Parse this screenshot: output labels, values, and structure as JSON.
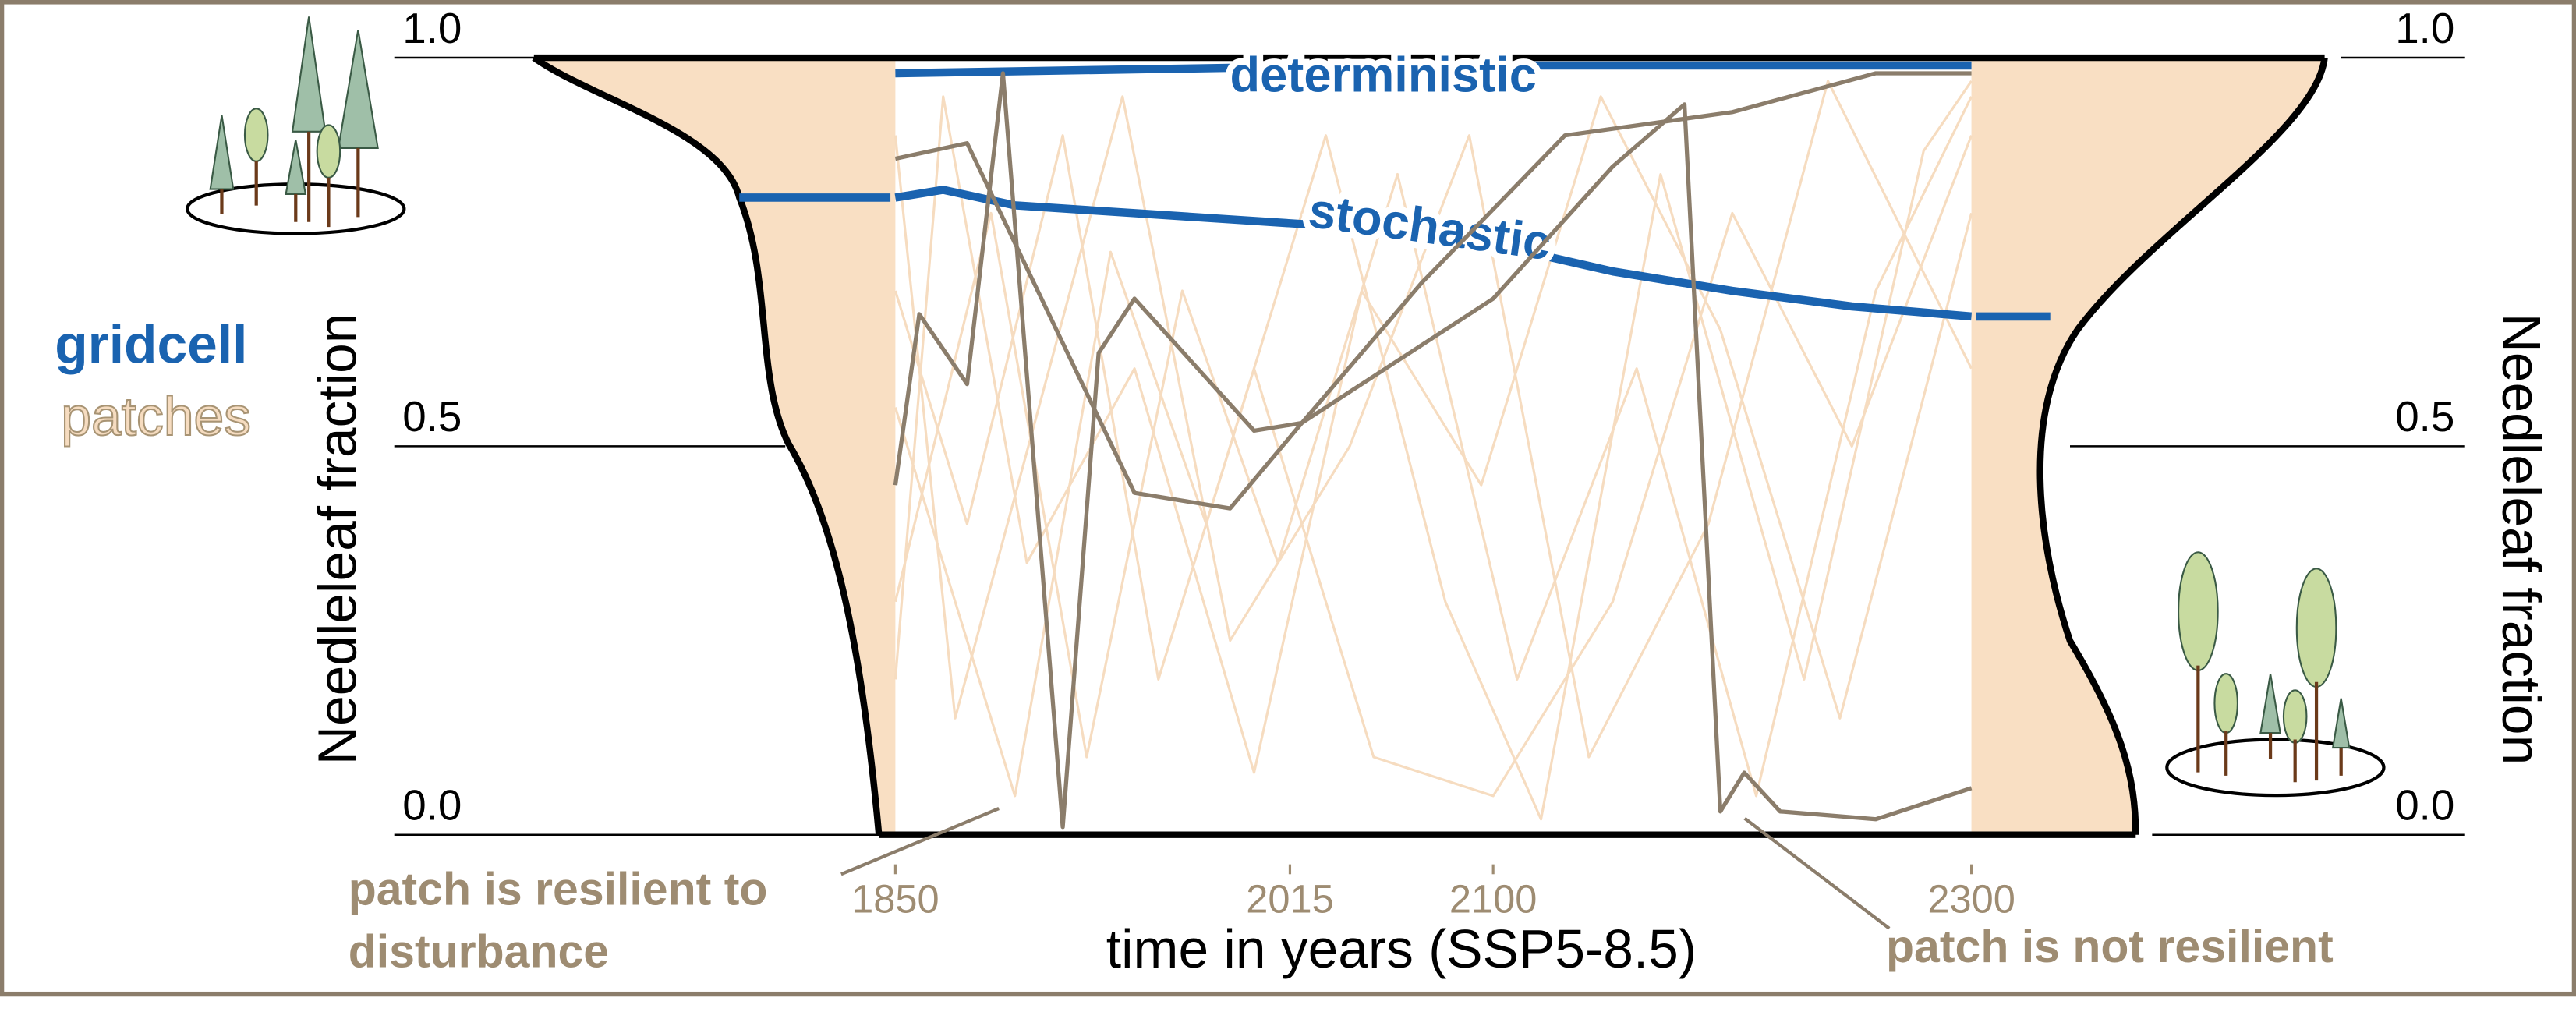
{
  "chart_data": {
    "type": "line",
    "y_label": "Needleleaf fraction",
    "x_label": "time in years (SSP5-8.5)",
    "xlim": [
      1850,
      2300
    ],
    "xticks": [
      1850,
      2015,
      2100,
      2300
    ],
    "ylim": [
      0,
      1
    ],
    "yticks": [
      {
        "value": 0,
        "label": "0.0"
      },
      {
        "value": 0.5,
        "label": "0.5"
      },
      {
        "value": 1,
        "label": "1.0"
      }
    ],
    "legend": [
      {
        "label": "gridcell",
        "color": "#1a63b0"
      },
      {
        "label": "patches",
        "color": "#f6dcc0"
      }
    ],
    "annotations": [
      "patch is resilient to disturbance",
      "patch is not resilient"
    ],
    "series": [
      {
        "color": "#f6dcc0",
        "x": [
          1850,
          1880,
          1920,
          1960,
          2000,
          2050,
          2100,
          2150,
          2200,
          2250,
          2300
        ],
        "values": [
          0.7,
          0.4,
          0.9,
          0.2,
          0.6,
          0.1,
          0.05,
          0.3,
          0.8,
          0.5,
          0.9
        ]
      },
      {
        "color": "#f6dcc0",
        "x": [
          1850,
          1890,
          1930,
          1970,
          2010,
          2060,
          2110,
          2160,
          2210,
          2260,
          2300
        ],
        "values": [
          0.3,
          0.8,
          0.1,
          0.7,
          0.35,
          0.85,
          0.2,
          0.6,
          0.05,
          0.7,
          0.95
        ]
      },
      {
        "color": "#f6dcc0",
        "x": [
          1850,
          1875,
          1910,
          1945,
          1990,
          2040,
          2090,
          2140,
          2190,
          2240,
          2300
        ],
        "values": [
          0.9,
          0.15,
          0.55,
          0.95,
          0.25,
          0.5,
          0.9,
          0.1,
          0.4,
          0.97,
          0.6
        ]
      },
      {
        "color": "#f6dcc0",
        "x": [
          1850,
          1900,
          1940,
          1980,
          2030,
          2080,
          2120,
          2170,
          2230,
          2280,
          2300
        ],
        "values": [
          0.55,
          0.05,
          0.75,
          0.4,
          0.9,
          0.3,
          0.02,
          0.85,
          0.2,
          0.88,
          0.97
        ]
      },
      {
        "color": "#f6dcc0",
        "x": [
          1850,
          1870,
          1905,
          1950,
          2000,
          2045,
          2095,
          2145,
          2195,
          2245,
          2300
        ],
        "values": [
          0.2,
          0.95,
          0.35,
          0.6,
          0.08,
          0.7,
          0.45,
          0.95,
          0.65,
          0.15,
          0.8
        ]
      },
      {
        "name": "deterministic",
        "color": "#1a63b0",
        "x": [
          1850,
          1950,
          2050,
          2150,
          2300
        ],
        "values": [
          0.98,
          0.985,
          0.99,
          0.99,
          0.99
        ]
      },
      {
        "name": "stochastic",
        "color": "#1a63b0",
        "x": [
          1850,
          1870,
          1900,
          1950,
          2000,
          2050,
          2100,
          2150,
          2200,
          2250,
          2300
        ],
        "values": [
          0.82,
          0.83,
          0.81,
          0.8,
          0.79,
          0.78,
          0.76,
          0.725,
          0.7,
          0.68,
          0.667
        ]
      },
      {
        "color": "#8b7d6b",
        "x": [
          1850,
          1860,
          1880,
          1895,
          1920,
          1935,
          1950,
          2000,
          2020,
          2070,
          2130,
          2200,
          2260,
          2300
        ],
        "values": [
          0.45,
          0.67,
          0.58,
          0.98,
          0.01,
          0.62,
          0.69,
          0.52,
          0.53,
          0.71,
          0.9,
          0.93,
          0.98,
          0.98
        ]
      },
      {
        "color": "#8b7d6b",
        "x": [
          1850,
          1880,
          1950,
          1990,
          2020,
          2050,
          2100,
          2150,
          2180,
          2195,
          2205,
          2220,
          2260,
          2300
        ],
        "values": [
          0.87,
          0.89,
          0.44,
          0.42,
          0.53,
          0.59,
          0.69,
          0.86,
          0.94,
          0.03,
          0.08,
          0.03,
          0.02,
          0.06
        ]
      }
    ]
  }
}
